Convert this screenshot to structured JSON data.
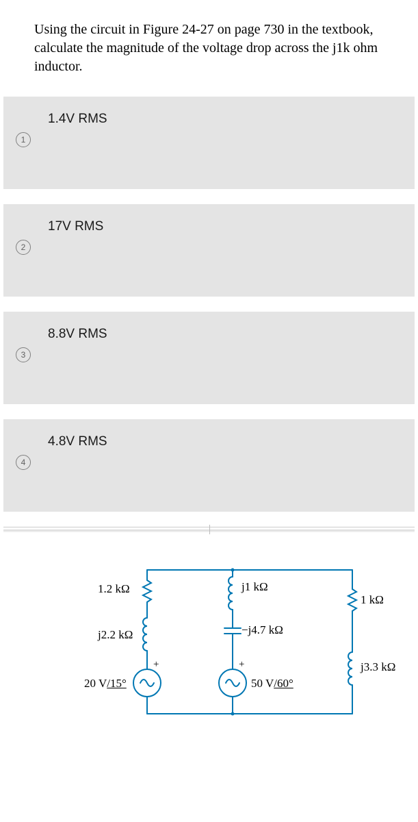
{
  "question": "Using the circuit in Figure 24-27 on page 730 in the textbook, calculate the magnitude of the voltage drop across the j1k ohm inductor.",
  "options": [
    {
      "num": "1",
      "label": "1.4V RMS"
    },
    {
      "num": "2",
      "label": "17V RMS"
    },
    {
      "num": "3",
      "label": "8.8V RMS"
    },
    {
      "num": "4",
      "label": "4.8V RMS"
    }
  ],
  "circuit": {
    "r1": "1.2 kΩ",
    "l1": "j2.2 kΩ",
    "vs1_plus": "+",
    "vs1": "20 V/15°",
    "l2": "j1 kΩ",
    "c1": "−j4.7 kΩ",
    "vs2_plus": "+",
    "vs2": "50 V/60°",
    "r2": "1 kΩ",
    "l3": "j3.3 kΩ",
    "stroke": "#0077b3",
    "stroke_width": 2
  }
}
